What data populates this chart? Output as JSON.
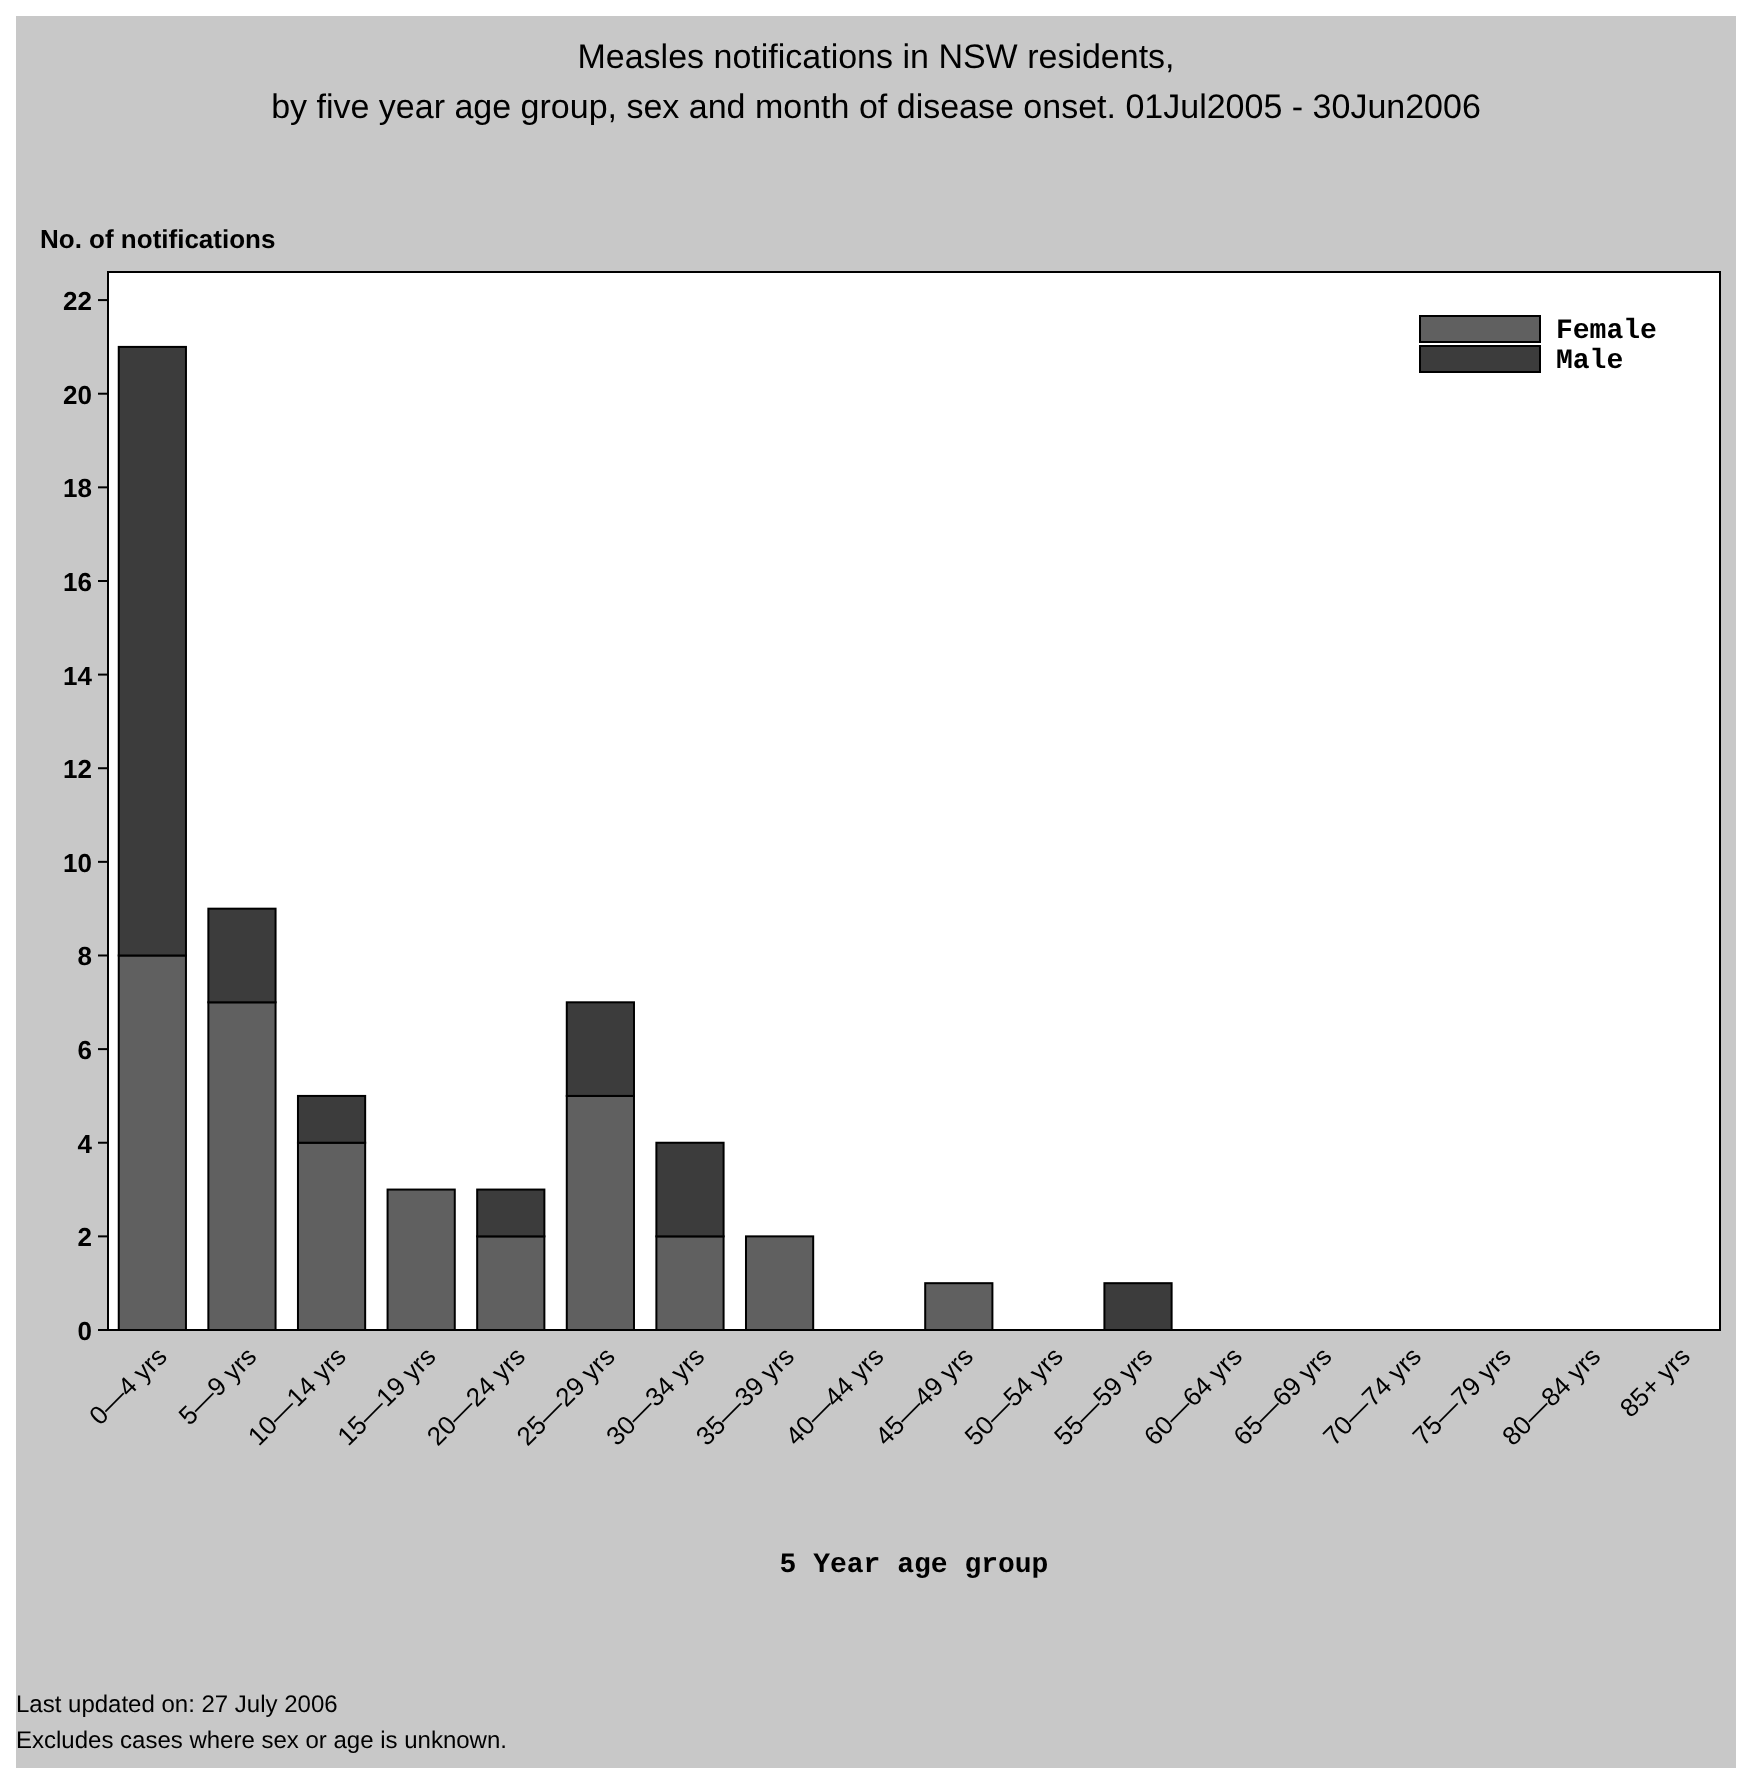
{
  "chart_data": {
    "type": "bar",
    "title": "Measles notifications in NSW residents,",
    "subtitle": "by five year age group, sex and month of disease onset. 01Jul2005 - 30Jun2006",
    "ylabel": "No. of notifications",
    "xlabel": "5 Year age group",
    "categories": [
      "0—4 yrs",
      "5—9 yrs",
      "10—14 yrs",
      "15—19 yrs",
      "20—24 yrs",
      "25—29 yrs",
      "30—34 yrs",
      "35—39 yrs",
      "40—44 yrs",
      "45—49 yrs",
      "50—54 yrs",
      "55—59 yrs",
      "60—64 yrs",
      "65—69 yrs",
      "70—74 yrs",
      "75—79 yrs",
      "80—84 yrs",
      "85+ yrs"
    ],
    "series": [
      {
        "name": "Female",
        "color": "#606060",
        "values": [
          8,
          7,
          4,
          3,
          2,
          5,
          2,
          2,
          0,
          1,
          0,
          0,
          0,
          0,
          0,
          0,
          0,
          0
        ]
      },
      {
        "name": "Male",
        "color": "#3c3c3c",
        "values": [
          13,
          2,
          1,
          0,
          1,
          2,
          2,
          0,
          0,
          0,
          0,
          1,
          0,
          0,
          0,
          0,
          0,
          0
        ]
      }
    ],
    "stacked": true,
    "ylim": [
      0,
      22.6
    ],
    "yticks": [
      0,
      2,
      4,
      6,
      8,
      10,
      12,
      14,
      16,
      18,
      20,
      22
    ],
    "grid": false,
    "legend": "top right",
    "annotations": [
      "Last updated on: 27 July 2006",
      "Excludes cases where sex or age is unknown."
    ]
  }
}
